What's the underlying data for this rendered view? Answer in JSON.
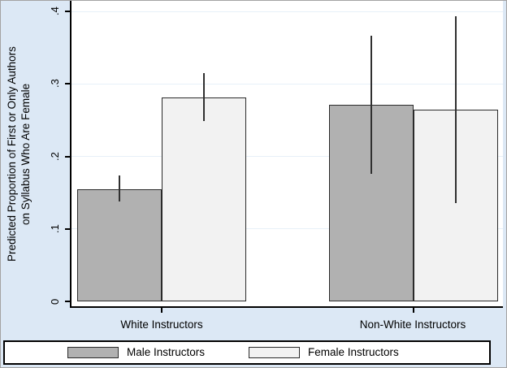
{
  "figure_title": "",
  "chart_data": {
    "type": "bar",
    "title": "",
    "xlabel": "",
    "ylabel": "Predicted Proportion of First or Only Authors on Syllabus Who Are Female",
    "y_axis": {
      "title_lines": [
        "Predicted Proportion of First or Only Authors",
        "on Syllabus Who Are Female"
      ],
      "tick_labels": [
        "0",
        ".1",
        ".2",
        ".3",
        ".4"
      ],
      "tick_values": [
        0,
        0.1,
        0.2,
        0.3,
        0.4
      ]
    },
    "ylim": [
      0,
      0.41
    ],
    "grid": true,
    "legend_position": "bottom",
    "error_bars": true,
    "categories": [
      "White Instructors",
      "Non-White Instructors"
    ],
    "series": [
      {
        "name": "Male Instructors",
        "color": "#b1b1b1",
        "values": [
          0.155,
          0.271
        ],
        "ci_low": [
          0.138,
          0.176
        ],
        "ci_high": [
          0.174,
          0.366
        ]
      },
      {
        "name": "Female Instructors",
        "color": "#f2f2f2",
        "values": [
          0.281,
          0.264
        ],
        "ci_low": [
          0.249,
          0.136
        ],
        "ci_high": [
          0.315,
          0.393
        ]
      }
    ],
    "colors": {
      "background": "#dce8f5",
      "plot_background": "#ffffff",
      "gridline": "#e7f0f8",
      "bar_border": "#2b2b2b",
      "axis": "#000000",
      "error_bar": "#303030",
      "legend_background": "#ffffff",
      "legend_border": "#000000",
      "text": "#000000"
    }
  }
}
